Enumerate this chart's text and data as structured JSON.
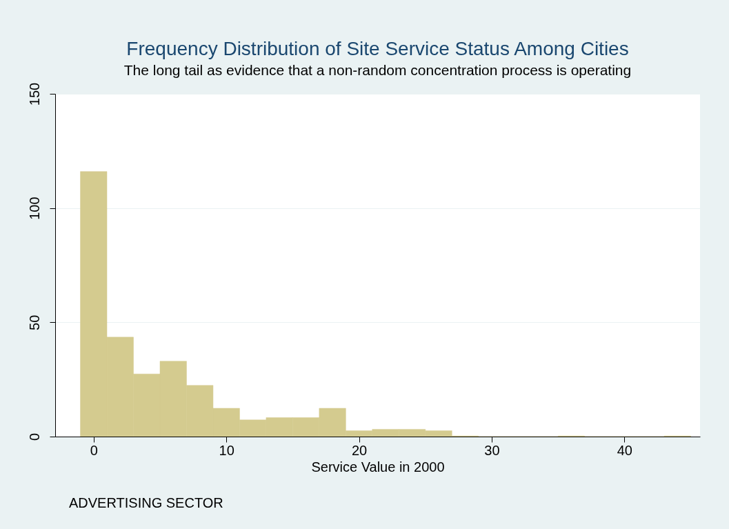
{
  "chart_data": {
    "type": "histogram",
    "title": "Frequency Distribution of Site Service Status Among Cities",
    "subtitle": "The long tail as evidence that a non-random concentration process is operating",
    "xlabel": "Service Value in 2000",
    "annotations": [
      "ADVERTISING SECTOR"
    ],
    "bins": [
      -1,
      1,
      3,
      5,
      7,
      9,
      11,
      13,
      15,
      17,
      19,
      21,
      23,
      25,
      27,
      29,
      31,
      33,
      35,
      37,
      39,
      41,
      43,
      45
    ],
    "values": [
      116,
      43.5,
      27.4,
      33,
      22.4,
      12.4,
      7.3,
      8.3,
      8.3,
      12.4,
      2.6,
      3.2,
      3.2,
      2.6,
      0.3,
      0,
      0,
      0,
      0.3,
      0,
      0,
      0,
      0.3
    ],
    "color": "#d4cb8f",
    "xlim": [
      -2.9,
      45.7
    ],
    "xticks": [
      0,
      10,
      20,
      30,
      40
    ],
    "ylim": [
      0,
      150
    ],
    "yticks": [
      0,
      50,
      100,
      150
    ],
    "grid": "y"
  }
}
